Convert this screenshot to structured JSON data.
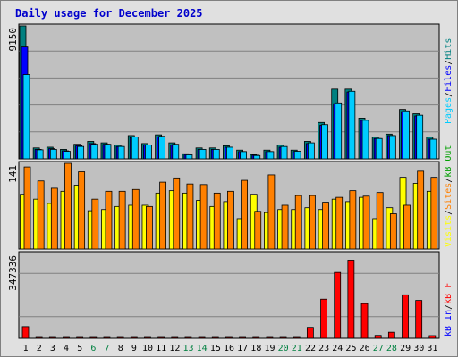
{
  "title": "Daily usage for December 2025",
  "colors": {
    "pages": "#00ccff",
    "files": "#0000ff",
    "hits": "#008080",
    "visits": "#ffff00",
    "sites": "#ff8000",
    "kbin": "#ff0000",
    "kbout": "#00a000",
    "title": "#0000cc",
    "weekend_label": "#008040",
    "weekday_label": "#000000",
    "panel_bg": "#c0c0c0",
    "frame_bg": "#e0e0e0"
  },
  "chart_data": [
    {
      "type": "bar",
      "panel": "top",
      "ymax_label": "9150",
      "ylim": [
        0,
        9150
      ],
      "x": [
        "1",
        "2",
        "3",
        "4",
        "5",
        "6",
        "7",
        "8",
        "9",
        "10",
        "11",
        "12",
        "13",
        "14",
        "15",
        "16",
        "17",
        "18",
        "19",
        "20",
        "21",
        "22",
        "23",
        "24",
        "25",
        "26",
        "27",
        "28",
        "29",
        "30",
        "31"
      ],
      "weekend_days": [
        "6",
        "7",
        "13",
        "14",
        "20",
        "21",
        "27",
        "28"
      ],
      "series": [
        {
          "name": "Hits",
          "values": [
            9150,
            750,
            800,
            650,
            1000,
            1200,
            1100,
            950,
            1600,
            1050,
            1650,
            1100,
            350,
            750,
            750,
            900,
            600,
            300,
            600,
            950,
            600,
            1200,
            2500,
            4800,
            4800,
            2800,
            1500,
            1700,
            3400,
            3100,
            1500
          ]
        },
        {
          "name": "Files",
          "values": [
            7700,
            650,
            700,
            550,
            900,
            1050,
            1000,
            850,
            1450,
            950,
            1500,
            950,
            300,
            650,
            650,
            800,
            500,
            250,
            500,
            800,
            500,
            1050,
            2300,
            3800,
            4600,
            2650,
            1400,
            1600,
            3250,
            2950,
            1350
          ]
        },
        {
          "name": "Pages",
          "values": [
            5800,
            620,
            650,
            520,
            850,
            1000,
            1000,
            850,
            1500,
            950,
            1550,
            1000,
            280,
            650,
            650,
            800,
            500,
            230,
            500,
            850,
            520,
            1100,
            2350,
            3850,
            4650,
            2650,
            1400,
            1600,
            3300,
            3000,
            1350
          ]
        }
      ],
      "legend": [
        "Pages",
        "/",
        "Files",
        "/",
        "Hits"
      ]
    },
    {
      "type": "bar",
      "panel": "middle",
      "ymax_label": "141",
      "ylim": [
        0,
        141
      ],
      "x": [
        "1",
        "2",
        "3",
        "4",
        "5",
        "6",
        "7",
        "8",
        "9",
        "10",
        "11",
        "12",
        "13",
        "14",
        "15",
        "16",
        "17",
        "18",
        "19",
        "20",
        "21",
        "22",
        "23",
        "24",
        "25",
        "26",
        "27",
        "28",
        "29",
        "30",
        "31"
      ],
      "series": [
        {
          "name": "Visits",
          "values": [
            90,
            82,
            75,
            95,
            105,
            63,
            65,
            70,
            72,
            72,
            92,
            96,
            92,
            80,
            70,
            78,
            50,
            90,
            60,
            65,
            65,
            68,
            65,
            82,
            78,
            85,
            50,
            68,
            118,
            108,
            95
          ]
        },
        {
          "name": "Sites",
          "values": [
            135,
            112,
            100,
            141,
            127,
            82,
            95,
            95,
            98,
            70,
            110,
            117,
            107,
            106,
            92,
            95,
            113,
            62,
            122,
            72,
            88,
            88,
            77,
            85,
            96,
            87,
            93,
            58,
            72,
            128,
            118
          ]
        }
      ],
      "legend": [
        "Visits",
        "/",
        "Sites",
        "/",
        "kB Out"
      ]
    },
    {
      "type": "bar",
      "panel": "bottom",
      "ymax_label": "347336",
      "ylim": [
        0,
        347336
      ],
      "x": [
        "1",
        "2",
        "3",
        "4",
        "5",
        "6",
        "7",
        "8",
        "9",
        "10",
        "11",
        "12",
        "13",
        "14",
        "15",
        "16",
        "17",
        "18",
        "19",
        "20",
        "21",
        "22",
        "23",
        "24",
        "25",
        "26",
        "27",
        "28",
        "29",
        "30",
        "31"
      ],
      "series": [
        {
          "name": "kB F",
          "values": [
            48000,
            2000,
            2000,
            2000,
            3000,
            3000,
            3000,
            3000,
            3000,
            3000,
            3000,
            3000,
            2000,
            2000,
            2000,
            2000,
            2000,
            2000,
            2000,
            3000,
            3000,
            45000,
            160000,
            270000,
            320000,
            142000,
            12000,
            25000,
            178000,
            155000,
            11000
          ]
        }
      ],
      "legend": [
        "kB In",
        "/",
        "kB F"
      ]
    }
  ]
}
